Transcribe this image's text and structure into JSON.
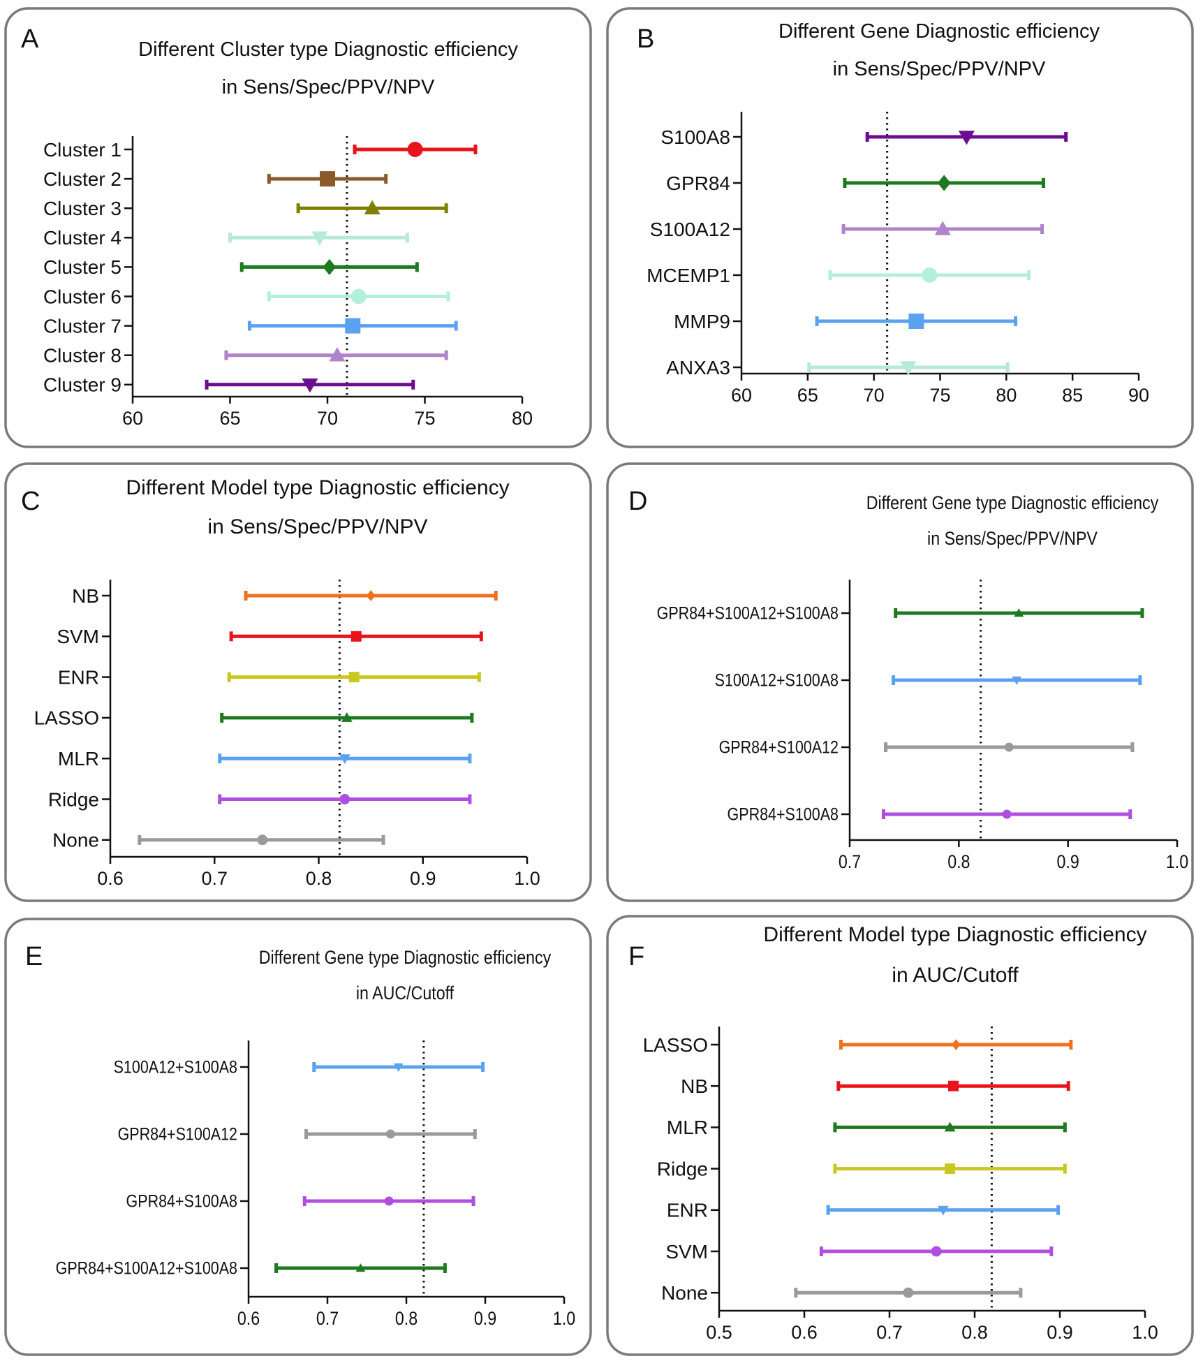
{
  "chart_data": [
    {
      "panel": "A",
      "type": "forest",
      "title_lines": [
        "Different Cluster type Diagnostic efficiency",
        "in Sens/Spec/PPV/NPV"
      ],
      "xlim": [
        60,
        80
      ],
      "xticks": [
        "60",
        "65",
        "70",
        "75",
        "80"
      ],
      "xtick_values": [
        60,
        65,
        70,
        75,
        80
      ],
      "reference": 71,
      "rows": [
        {
          "label": "Cluster 1",
          "mean": 74.5,
          "low": 71.4,
          "high": 77.6,
          "color": "#e8141b",
          "marker": "circle"
        },
        {
          "label": "Cluster 2",
          "mean": 70.0,
          "low": 67.0,
          "high": 73.0,
          "color": "#8b5a2b",
          "marker": "square"
        },
        {
          "label": "Cluster 3",
          "mean": 72.3,
          "low": 68.5,
          "high": 76.1,
          "color": "#808000",
          "marker": "triangle-up"
        },
        {
          "label": "Cluster 4",
          "mean": 69.6,
          "low": 65.0,
          "high": 74.1,
          "color": "#b7e8dc",
          "marker": "triangle-down"
        },
        {
          "label": "Cluster 5",
          "mean": 70.1,
          "low": 65.6,
          "high": 74.6,
          "color": "#1e7a1e",
          "marker": "diamond"
        },
        {
          "label": "Cluster 6",
          "mean": 71.6,
          "low": 67.0,
          "high": 76.2,
          "color": "#b3f0dc",
          "marker": "circle"
        },
        {
          "label": "Cluster 7",
          "mean": 71.3,
          "low": 66.0,
          "high": 76.6,
          "color": "#5aa2f0",
          "marker": "square"
        },
        {
          "label": "Cluster 8",
          "mean": 70.5,
          "low": 64.8,
          "high": 76.1,
          "color": "#b084c8",
          "marker": "triangle-up"
        },
        {
          "label": "Cluster 9",
          "mean": 69.1,
          "low": 63.8,
          "high": 74.4,
          "color": "#6a0d91",
          "marker": "triangle-down"
        }
      ]
    },
    {
      "panel": "B",
      "type": "forest",
      "title_lines": [
        "Different Gene Diagnostic efficiency",
        "in Sens/Spec/PPV/NPV"
      ],
      "xlim": [
        60,
        90
      ],
      "xticks": [
        "60",
        "65",
        "70",
        "75",
        "80",
        "85",
        "90"
      ],
      "xtick_values": [
        60,
        65,
        70,
        75,
        80,
        85,
        90
      ],
      "reference": 71,
      "rows": [
        {
          "label": "S100A8",
          "mean": 77.0,
          "low": 69.5,
          "high": 84.5,
          "color": "#6a0d91",
          "marker": "triangle-down"
        },
        {
          "label": "GPR84",
          "mean": 75.3,
          "low": 67.8,
          "high": 82.8,
          "color": "#1e7a1e",
          "marker": "diamond"
        },
        {
          "label": "S100A12",
          "mean": 75.2,
          "low": 67.7,
          "high": 82.7,
          "color": "#b084c8",
          "marker": "triangle-up"
        },
        {
          "label": "MCEMP1",
          "mean": 74.2,
          "low": 66.7,
          "high": 81.7,
          "color": "#b3f0dc",
          "marker": "circle"
        },
        {
          "label": "MMP9",
          "mean": 73.2,
          "low": 65.7,
          "high": 80.7,
          "color": "#5aa2f0",
          "marker": "square"
        },
        {
          "label": "ANXA3",
          "mean": 72.6,
          "low": 65.1,
          "high": 80.1,
          "color": "#b7e8dc",
          "marker": "triangle-down"
        }
      ]
    },
    {
      "panel": "C",
      "type": "forest",
      "title_lines": [
        "Different Model type Diagnostic efficiency",
        "in Sens/Spec/PPV/NPV"
      ],
      "xlim": [
        0.6,
        1.0
      ],
      "xticks": [
        "0.6",
        "0.7",
        "0.8",
        "0.9",
        "1.0"
      ],
      "xtick_values": [
        0.6,
        0.7,
        0.8,
        0.9,
        1.0
      ],
      "reference": 0.82,
      "rows": [
        {
          "label": "NB",
          "mean": 0.85,
          "low": 0.73,
          "high": 0.97,
          "color": "#f07020",
          "marker": "diamond"
        },
        {
          "label": "SVM",
          "mean": 0.836,
          "low": 0.716,
          "high": 0.956,
          "color": "#e8141b",
          "marker": "square"
        },
        {
          "label": "ENR",
          "mean": 0.834,
          "low": 0.714,
          "high": 0.954,
          "color": "#c8c820",
          "marker": "square"
        },
        {
          "label": "LASSO",
          "mean": 0.827,
          "low": 0.707,
          "high": 0.947,
          "color": "#1e7a1e",
          "marker": "triangle-up"
        },
        {
          "label": "MLR",
          "mean": 0.825,
          "low": 0.705,
          "high": 0.945,
          "color": "#5aa2f0",
          "marker": "triangle-down"
        },
        {
          "label": "Ridge",
          "mean": 0.825,
          "low": 0.705,
          "high": 0.945,
          "color": "#b04ee0",
          "marker": "circle"
        },
        {
          "label": "None",
          "mean": 0.746,
          "low": 0.628,
          "high": 0.862,
          "color": "#9a9a9a",
          "marker": "circle"
        }
      ]
    },
    {
      "panel": "D",
      "type": "forest",
      "title_lines": [
        "Different Gene type Diagnostic efficiency",
        "in Sens/Spec/PPV/NPV"
      ],
      "xlim": [
        0.7,
        1.0
      ],
      "xticks": [
        "0.7",
        "0.8",
        "0.9",
        "1.0"
      ],
      "xtick_values": [
        0.7,
        0.8,
        0.9,
        1.0
      ],
      "reference": 0.82,
      "rows": [
        {
          "label": "GPR84+S100A12+S100A8",
          "mean": 0.855,
          "low": 0.742,
          "high": 0.968,
          "color": "#1e7a1e",
          "marker": "triangle-up"
        },
        {
          "label": "S100A12+S100A8",
          "mean": 0.853,
          "low": 0.74,
          "high": 0.966,
          "color": "#5aa2f0",
          "marker": "triangle-down"
        },
        {
          "label": "GPR84+S100A12",
          "mean": 0.846,
          "low": 0.733,
          "high": 0.959,
          "color": "#9a9a9a",
          "marker": "circle"
        },
        {
          "label": "GPR84+S100A8",
          "mean": 0.844,
          "low": 0.731,
          "high": 0.957,
          "color": "#b04ee0",
          "marker": "circle"
        }
      ]
    },
    {
      "panel": "E",
      "type": "forest",
      "title_lines": [
        "Different Gene type Diagnostic efficiency",
        "in AUC/Cutoff"
      ],
      "xlim": [
        0.6,
        1.0
      ],
      "xticks": [
        "0.6",
        "0.7",
        "0.8",
        "0.9",
        "1.0"
      ],
      "xtick_values": [
        0.6,
        0.7,
        0.8,
        0.9,
        1.0
      ],
      "reference": 0.822,
      "rows": [
        {
          "label": "S100A12+S100A8",
          "mean": 0.79,
          "low": 0.683,
          "high": 0.897,
          "color": "#5aa2f0",
          "marker": "triangle-down"
        },
        {
          "label": "GPR84+S100A12",
          "mean": 0.78,
          "low": 0.673,
          "high": 0.887,
          "color": "#9a9a9a",
          "marker": "circle"
        },
        {
          "label": "GPR84+S100A8",
          "mean": 0.778,
          "low": 0.671,
          "high": 0.885,
          "color": "#b04ee0",
          "marker": "circle"
        },
        {
          "label": "GPR84+S100A12+S100A8",
          "mean": 0.742,
          "low": 0.635,
          "high": 0.849,
          "color": "#1e7a1e",
          "marker": "triangle-up"
        }
      ]
    },
    {
      "panel": "F",
      "type": "forest",
      "title_lines": [
        "Different Model type Diagnostic efficiency",
        "in AUC/Cutoff"
      ],
      "xlim": [
        0.5,
        1.0
      ],
      "xticks": [
        "0.5",
        "0.6",
        "0.7",
        "0.8",
        "0.9",
        "1.0"
      ],
      "xtick_values": [
        0.5,
        0.6,
        0.7,
        0.8,
        0.9,
        1.0
      ],
      "reference": 0.82,
      "rows": [
        {
          "label": "LASSO",
          "mean": 0.778,
          "low": 0.643,
          "high": 0.913,
          "color": "#f07020",
          "marker": "diamond"
        },
        {
          "label": "NB",
          "mean": 0.775,
          "low": 0.64,
          "high": 0.91,
          "color": "#e8141b",
          "marker": "square"
        },
        {
          "label": "MLR",
          "mean": 0.771,
          "low": 0.636,
          "high": 0.906,
          "color": "#1e7a1e",
          "marker": "triangle-up"
        },
        {
          "label": "Ridge",
          "mean": 0.771,
          "low": 0.636,
          "high": 0.906,
          "color": "#c8c820",
          "marker": "square"
        },
        {
          "label": "ENR",
          "mean": 0.763,
          "low": 0.628,
          "high": 0.898,
          "color": "#5aa2f0",
          "marker": "triangle-down"
        },
        {
          "label": "SVM",
          "mean": 0.755,
          "low": 0.62,
          "high": 0.89,
          "color": "#b04ee0",
          "marker": "circle"
        },
        {
          "label": "None",
          "mean": 0.722,
          "low": 0.59,
          "high": 0.854,
          "color": "#9a9a9a",
          "marker": "circle"
        }
      ]
    }
  ]
}
